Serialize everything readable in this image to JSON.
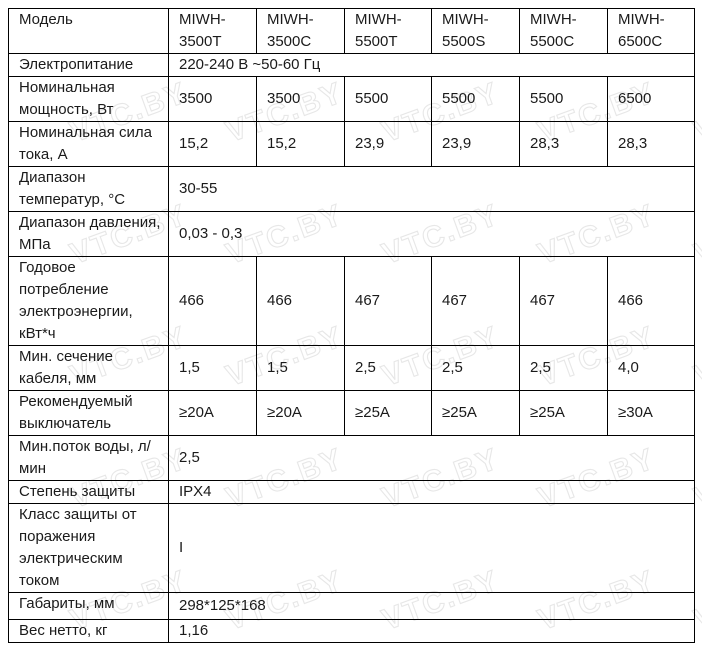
{
  "watermark": {
    "text": "VTC.BY",
    "stroke_color": "#e7e7e7"
  },
  "table": {
    "header": {
      "label": "Модель",
      "models": [
        "MIWH-\n3500T",
        "MIWH-\n3500C",
        "MIWH-\n5500T",
        "MIWH-\n5500S",
        "MIWH-\n5500C",
        "MIWH-\n6500C"
      ]
    },
    "rows": [
      {
        "label": "Электропитание",
        "value": "220-240 В ~50-60 Гц"
      },
      {
        "label": "Номинальная мощность, Вт",
        "values": [
          "3500",
          "3500",
          "5500",
          "5500",
          "5500",
          "6500"
        ]
      },
      {
        "label": "Номинальная сила тока, А",
        "values": [
          "15,2",
          "15,2",
          "23,9",
          "23,9",
          "28,3",
          "28,3"
        ]
      },
      {
        "label": "Диапазон температур, °С",
        "value": "30-55"
      },
      {
        "label": "Диапазон давления, МПа",
        "value": "0,03 - 0,3"
      },
      {
        "label": "Годовое потребление электроэнергии, кВт*ч",
        "values": [
          "466",
          "466",
          "467",
          "467",
          "467",
          "466"
        ]
      },
      {
        "label": "Мин. сечение кабеля, мм",
        "values": [
          "1,5",
          "1,5",
          "2,5",
          "2,5",
          "2,5",
          "4,0"
        ]
      },
      {
        "label": "Рекомендуемый выключатель",
        "values": [
          "≥20A",
          "≥20A",
          "≥25A",
          "≥25A",
          "≥25A",
          "≥30A"
        ]
      },
      {
        "label": "Мин.поток воды, л/мин",
        "value": "2,5"
      },
      {
        "label": "Степень защиты",
        "value": "IPX4"
      },
      {
        "label": "Класс защиты от поражения электрическим током",
        "value": "I"
      },
      {
        "label": "Габариты, мм",
        "value": "298*125*168"
      },
      {
        "label": "Вес нетто, кг",
        "value": "1,16"
      }
    ]
  }
}
